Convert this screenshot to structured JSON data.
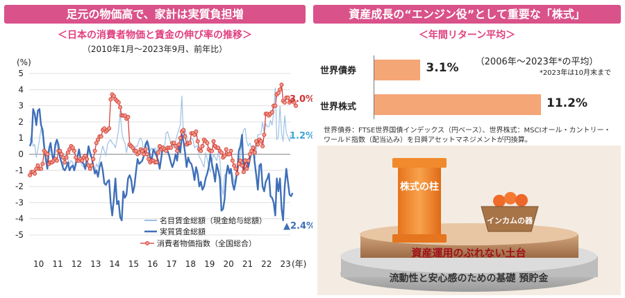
{
  "left_panel": {
    "header": "足元の物価高で、家計は実質負担増",
    "subtitle": "＜日本の消費者物価と賃金の伸び率の推移＞",
    "note": "（2010年1月～2023年9月、前年比）"
  },
  "right_panel": {
    "header": "資産成長の“エンジン役”として重要な「株式」",
    "subtitle": "＜年間リターン平均＞",
    "period_note": "（2006年～2023年*の平均）",
    "footnote": "*2023年は10月末まで",
    "source": "世界債券：FTSE世界国債インデックス（円ベース）、世界株式：MSCIオール・カントリー・ワールド指数（配当込み）を日興アセットマネジメントが円換算。",
    "illustration": {
      "pillar_text": "株式の柱",
      "basket_text": "インカムの器",
      "platform_text": "資産運用のぶれない土台",
      "base_text": "流動性と安心感のための基礎 預貯金"
    }
  },
  "chart_data": [
    {
      "type": "line",
      "title": "日本の消費者物価と賃金の伸び率の推移",
      "ylabel": "(%)",
      "xlabel": "(年)",
      "ylim": [
        -5,
        5
      ],
      "yticks": [
        5,
        4,
        3,
        2,
        1,
        0,
        -1,
        -2,
        -3,
        -4,
        -5
      ],
      "xticks": [
        "10",
        "11",
        "12",
        "13",
        "14",
        "15",
        "16",
        "17",
        "18",
        "19",
        "20",
        "21",
        "22",
        "23"
      ],
      "x_start": "2010-01",
      "x_end": "2023-09",
      "annotations": [
        {
          "text": "3.0%",
          "series": 2
        },
        {
          "text": "1.2%",
          "series": 0
        },
        {
          "text": "▲2.4%",
          "series": 1
        }
      ],
      "series": [
        {
          "name": "名目賃金総額（現金給与総額）",
          "color": "#9ec0e2",
          "values": [
            0.8,
            1.2,
            0.5,
            0.6,
            -0.2,
            0.3,
            0.9,
            1.6,
            1.1,
            0.2,
            0.0,
            -0.5,
            0.1,
            0.3,
            0.0,
            -0.2,
            0.4,
            0.7,
            0.1,
            -0.3,
            -0.6,
            -0.8,
            -0.2,
            0.0,
            -0.3,
            -0.6,
            -0.4,
            -0.5,
            -0.9,
            -0.3,
            -0.2,
            0.1,
            -0.5,
            -0.7,
            -0.8,
            -1.0,
            -0.4,
            0.2,
            -0.1,
            -0.3,
            -0.8,
            -1.1,
            -0.6,
            -0.8,
            -0.4,
            0.1,
            0.5,
            0.2,
            -0.1,
            0.6,
            0.8,
            0.9,
            0.7,
            0.6,
            0.4,
            0.9,
            1.5,
            2.7,
            1.4,
            0.9,
            0.7,
            0.1,
            0.6,
            0.4,
            0.4,
            0.3,
            0.2,
            0.5,
            0.5,
            0.9,
            1.0,
            0.8,
            0.0,
            0.1,
            0.9,
            0.7,
            0.2,
            0.4,
            0.2,
            0.4,
            0.1,
            0.5,
            0.4,
            0.1,
            0.5,
            0.3,
            1.3,
            1.4,
            1.0,
            0.7,
            0.5,
            0.6,
            0.8,
            1.2,
            1.5,
            1.8,
            3.6,
            1.0,
            1.5,
            1.1,
            0.5,
            0.6,
            1.0,
            0.9,
            0.4,
            0.5,
            0.5,
            -0.2,
            -0.3,
            -0.6,
            -0.8,
            0.1,
            -0.3,
            -0.8,
            -1.1,
            -0.5,
            0.0,
            -0.2,
            -0.4,
            0.1,
            -0.3,
            -2.0,
            -2.5,
            -1.3,
            -1.2,
            -0.8,
            -0.9,
            -1.0,
            -1.2,
            -1.8,
            -1.4,
            -0.9,
            -0.5,
            -0.1,
            1.0,
            1.5,
            1.6,
            0.8,
            0.5,
            0.7,
            0.4,
            0.4,
            -0.3,
            0.0,
            1.2,
            1.2,
            1.3,
            2.0,
            1.3,
            1.9,
            1.7,
            1.7,
            2.1,
            1.8,
            2.6,
            4.1,
            0.9,
            1.1,
            3.0,
            1.3,
            0.8,
            2.4,
            1.3,
            1.1,
            0.8,
            1.2
          ]
        },
        {
          "name": "実質賃金総額",
          "color": "#3e6fb8",
          "values": [
            0.5,
            0.8,
            2.8,
            2.5,
            1.8,
            2.7,
            2.8,
            1.8,
            1.5,
            0.5,
            -0.3,
            -0.9,
            0.3,
            0.7,
            0.0,
            -0.5,
            0.6,
            0.9,
            0.6,
            -0.2,
            -0.5,
            -0.9,
            -1.0,
            -0.8,
            -0.5,
            -1.0,
            -0.8,
            -0.7,
            -1.0,
            -0.6,
            -0.2,
            0.3,
            -0.3,
            -0.5,
            -0.6,
            -0.9,
            -0.2,
            0.5,
            0.1,
            -0.2,
            -0.7,
            -1.2,
            -1.0,
            -1.4,
            -0.8,
            -0.5,
            -1.0,
            -1.8,
            -1.9,
            -1.7,
            -1.6,
            -3.0,
            -3.8,
            -2.8,
            -1.5,
            -3.1,
            -2.9,
            -3.9,
            -4.1,
            -2.3,
            -2.7,
            -2.5,
            -1.5,
            -1.3,
            -1.6,
            -2.4,
            -2.0,
            -1.1,
            -0.3,
            -0.6,
            -0.5,
            -0.4,
            -0.1,
            0.6,
            0.8,
            0.4,
            -0.2,
            -0.3,
            0.3,
            0.1,
            -0.1,
            -0.4,
            -0.9,
            -0.2,
            0.5,
            0.2,
            0.3,
            0.2,
            -0.1,
            -0.5,
            -0.8,
            -0.5,
            0.0,
            -0.4,
            0.6,
            0.1,
            1.2,
            0.8,
            0.1,
            -0.8,
            -0.2,
            -0.5,
            -0.6,
            -1.0,
            -1.6,
            -0.8,
            -1.2,
            -2.0,
            -1.7,
            -2.2,
            -2.0,
            -1.5,
            -1.2,
            -0.8,
            0.0,
            -0.6,
            -1.1,
            -1.7,
            -0.6,
            -1.0,
            -1.5,
            -3.5,
            -3.4,
            -2.8,
            -1.3,
            -0.7,
            -1.2,
            -0.9,
            -1.8,
            -2.2,
            -1.7,
            -1.0,
            0.2,
            0.5,
            1.2,
            -1.0,
            -0.3,
            -0.4,
            -0.8,
            -0.3,
            0.2,
            0.5,
            -0.5,
            -1.3,
            -2.2,
            -0.7,
            -0.6,
            -2.0,
            -2.3,
            -1.7,
            -1.5,
            -1.2,
            -2.6,
            -2.7,
            -3.0,
            -3.8,
            -1.5,
            -2.3,
            -1.5,
            -3.4,
            -4.1,
            -2.0,
            -0.9,
            -1.7,
            -2.5,
            -2.6,
            -2.4
          ]
        },
        {
          "name": "消費者物価指数（全国総合）",
          "color": "#cc3333",
          "values": [
            -1.3,
            -1.1,
            -1.1,
            -1.2,
            -0.9,
            -0.7,
            -0.9,
            -0.9,
            -0.6,
            0.2,
            0.1,
            0.0,
            -0.6,
            -0.5,
            -0.5,
            -0.4,
            -0.3,
            -0.4,
            0.2,
            0.2,
            0.0,
            -0.2,
            -0.5,
            -0.2,
            0.1,
            0.3,
            0.5,
            0.4,
            0.2,
            -0.2,
            -0.4,
            -0.4,
            -0.3,
            -0.4,
            -0.2,
            -0.1,
            -0.3,
            -0.7,
            -0.9,
            -0.7,
            -0.3,
            0.2,
            0.7,
            0.9,
            1.1,
            1.1,
            1.5,
            1.6,
            1.4,
            1.5,
            1.6,
            3.4,
            3.7,
            3.6,
            3.4,
            3.3,
            3.2,
            2.9,
            2.4,
            2.4,
            2.4,
            2.2,
            2.3,
            0.6,
            0.5,
            0.4,
            0.2,
            0.2,
            0.0,
            0.1,
            0.3,
            0.2,
            0.0,
            0.3,
            0.0,
            -0.3,
            -0.5,
            -0.4,
            -0.4,
            -0.5,
            -0.5,
            0.1,
            0.5,
            0.3,
            0.4,
            0.3,
            0.2,
            0.4,
            0.4,
            0.4,
            0.7,
            0.7,
            0.5,
            0.2,
            0.6,
            1.0,
            1.4,
            1.5,
            1.1,
            0.6,
            0.7,
            0.7,
            1.3,
            1.3,
            1.2,
            1.4,
            0.8,
            0.3,
            0.2,
            0.5,
            0.9,
            0.8,
            0.7,
            0.3,
            0.2,
            0.2,
            0.8,
            0.5,
            0.4,
            0.4,
            0.2,
            0.1,
            -0.2,
            -0.1,
            0.3,
            0.0,
            0.0,
            0.2,
            -0.4,
            -0.7,
            -0.9,
            -1.2,
            -0.6,
            -0.4,
            -0.7,
            -1.1,
            -0.4,
            -0.9,
            -0.4,
            0.0,
            0.2,
            0.4,
            0.1,
            0.8,
            0.6,
            0.9,
            0.8,
            0.5,
            1.2,
            2.5,
            2.5,
            2.4,
            2.5,
            2.6,
            3.0,
            3.0,
            3.7,
            3.8,
            4.0,
            4.3,
            3.3,
            3.2,
            3.5,
            3.5,
            3.2,
            3.3,
            3.3,
            3.2,
            3.0
          ]
        }
      ]
    },
    {
      "type": "bar",
      "title": "年間リターン平均",
      "categories": [
        "世界債券",
        "世界株式"
      ],
      "values": [
        3.1,
        11.2
      ],
      "value_labels": [
        "3.1%",
        "11.2%"
      ],
      "orientation": "horizontal",
      "xlim": [
        0,
        14
      ]
    }
  ]
}
